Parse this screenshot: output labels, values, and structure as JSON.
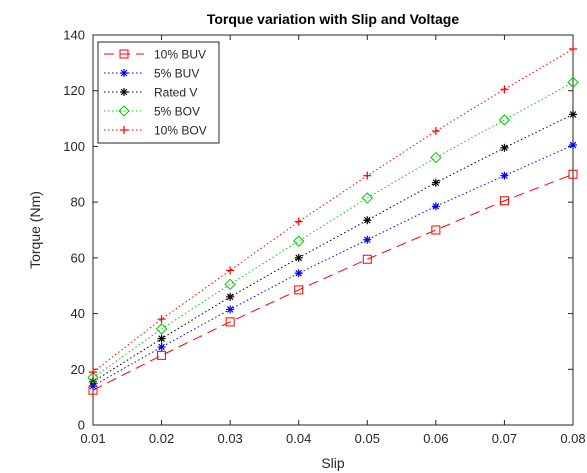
{
  "chart_data": {
    "type": "line",
    "title": "Torque variation with Slip and Voltage",
    "xlabel": "Slip",
    "ylabel": "Torque (Nm)",
    "xlim": [
      0.01,
      0.08
    ],
    "ylim": [
      0,
      140
    ],
    "xticks": [
      0.01,
      0.02,
      0.03,
      0.04,
      0.05,
      0.06,
      0.07,
      0.08
    ],
    "xtick_labels": [
      "0.01",
      "0.02",
      "0.03",
      "0.04",
      "0.05",
      "0.06",
      "0.07",
      "0.08"
    ],
    "yticks": [
      0,
      20,
      40,
      60,
      80,
      100,
      120,
      140
    ],
    "ytick_labels": [
      "0",
      "20",
      "40",
      "60",
      "80",
      "100",
      "120",
      "140"
    ],
    "grid": false,
    "legend_position": "top-left",
    "x": [
      0.01,
      0.02,
      0.03,
      0.04,
      0.05,
      0.06,
      0.07,
      0.08
    ],
    "series": [
      {
        "name": "10% BUV",
        "color": "#ff0000",
        "marker": "square",
        "line_style": "dashed",
        "values": [
          12.5,
          25,
          37,
          48.5,
          59.5,
          70,
          80.5,
          90
        ]
      },
      {
        "name": "5% BUV",
        "color": "#0000ff",
        "marker": "asterisk",
        "line_style": "dotted",
        "values": [
          14,
          28,
          41.5,
          54.5,
          66.5,
          78.5,
          89.5,
          100.5
        ]
      },
      {
        "name": "Rated V",
        "color": "#000000",
        "marker": "asterisk",
        "line_style": "dotted",
        "values": [
          15.5,
          31,
          46,
          60,
          73.5,
          87,
          99.5,
          111.5
        ]
      },
      {
        "name": "5% BOV",
        "color": "#00cc00",
        "marker": "diamond",
        "line_style": "dotted",
        "values": [
          17,
          34.5,
          50.5,
          66,
          81.5,
          96,
          109.5,
          123
        ]
      },
      {
        "name": "10% BOV",
        "color": "#ff0000",
        "marker": "plus",
        "line_style": "dotted",
        "values": [
          19,
          38,
          55.5,
          73,
          89.5,
          105.5,
          120.5,
          135
        ]
      }
    ]
  }
}
